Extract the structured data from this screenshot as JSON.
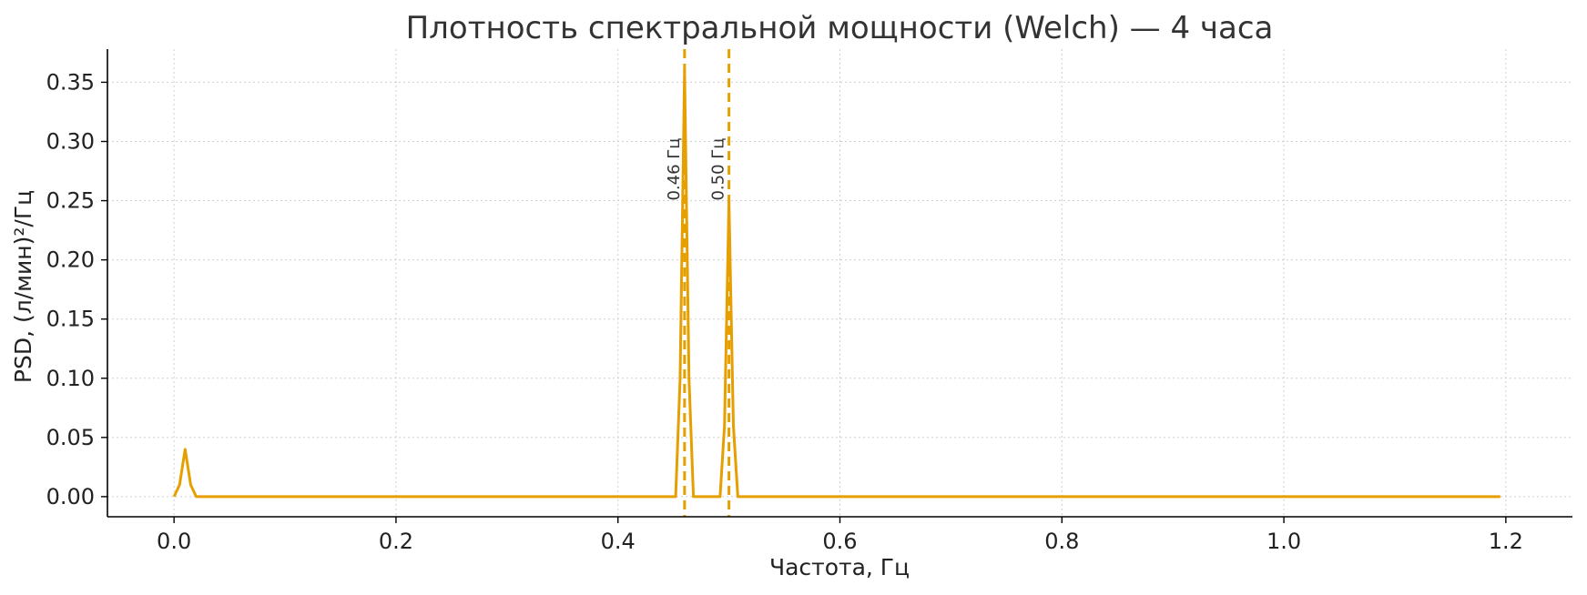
{
  "chart_data": {
    "type": "line",
    "title": "Плотность спектральной мощности (Welch) — 4 часа",
    "xlabel": "Частота, Гц",
    "ylabel": "PSD, (л/мин)²/Гц",
    "xlim": [
      -0.06,
      1.26
    ],
    "ylim": [
      -0.017,
      0.378
    ],
    "xticks": [
      0.0,
      0.2,
      0.4,
      0.6,
      0.8,
      1.0,
      1.2
    ],
    "xtick_labels": [
      "0.0",
      "0.2",
      "0.4",
      "0.6",
      "0.8",
      "1.0",
      "1.2"
    ],
    "yticks": [
      0.0,
      0.05,
      0.1,
      0.15,
      0.2,
      0.25,
      0.3,
      0.35
    ],
    "ytick_labels": [
      "0.00",
      "0.05",
      "0.10",
      "0.15",
      "0.20",
      "0.25",
      "0.30",
      "0.35"
    ],
    "grid": true,
    "color": "#e69f00",
    "series": [
      {
        "points": [
          [
            0.0,
            0.0
          ],
          [
            0.005,
            0.01
          ],
          [
            0.01,
            0.04
          ],
          [
            0.015,
            0.01
          ],
          [
            0.02,
            0.0
          ],
          [
            0.452,
            0.0
          ],
          [
            0.456,
            0.1
          ],
          [
            0.46,
            0.36
          ],
          [
            0.464,
            0.1
          ],
          [
            0.468,
            0.0
          ],
          [
            0.492,
            0.0
          ],
          [
            0.496,
            0.06
          ],
          [
            0.5,
            0.25
          ],
          [
            0.504,
            0.06
          ],
          [
            0.508,
            0.0
          ],
          [
            1.195,
            0.0
          ]
        ]
      }
    ],
    "annotations": [
      {
        "x": 0.46,
        "label": "0.46 Гц",
        "label_y": 0.25
      },
      {
        "x": 0.5,
        "label": "0.50 Гц",
        "label_y": 0.25
      }
    ]
  }
}
